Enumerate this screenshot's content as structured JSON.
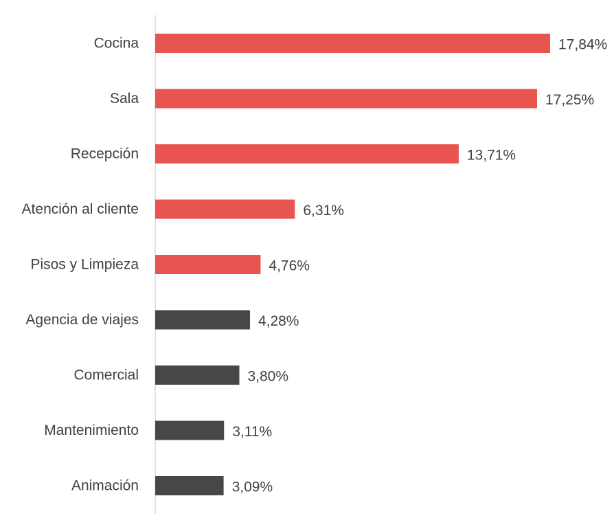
{
  "chart_data": {
    "type": "bar",
    "orientation": "horizontal",
    "categories": [
      "Cocina",
      "Sala",
      "Recepción",
      "Atención al cliente",
      "Pisos y Limpieza",
      "Agencia de viajes",
      "Comercial",
      "Mantenimiento",
      "Animación"
    ],
    "values": [
      17.84,
      17.25,
      13.71,
      6.31,
      4.76,
      4.28,
      3.8,
      3.11,
      3.09
    ],
    "value_labels": [
      "17,84%",
      "17,25%",
      "13,71%",
      "6,31%",
      "4,76%",
      "4,28%",
      "3,80%",
      "3,11%",
      "3,09%"
    ],
    "bar_colors": [
      "#e85450",
      "#e85450",
      "#e85450",
      "#e85450",
      "#e85450",
      "#474747",
      "#474747",
      "#474747",
      "#474747"
    ],
    "title": "",
    "xlabel": "",
    "ylabel": "",
    "xlim": [
      0,
      17.84
    ],
    "grid": false,
    "legend": "none",
    "axis_color": "#d9d9d9",
    "text_color": "#404040"
  }
}
